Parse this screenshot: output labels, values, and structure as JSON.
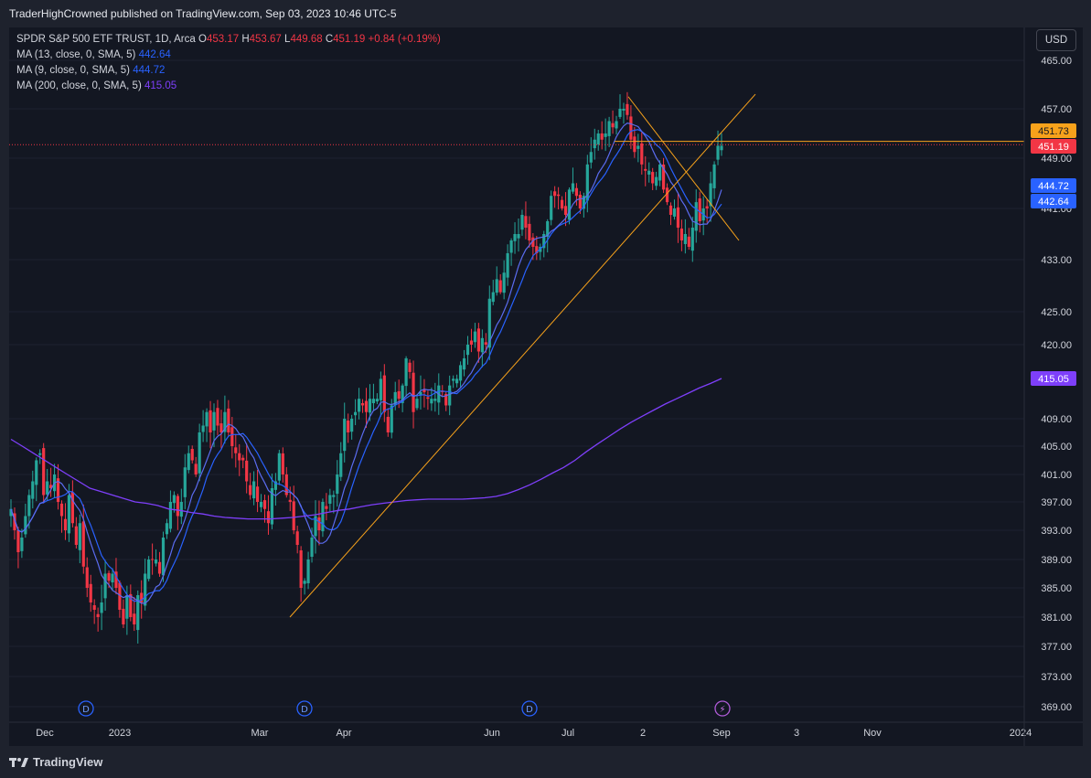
{
  "header": {
    "published": "TraderHighCrowned published on TradingView.com, Sep 03, 2023 10:46 UTC-5"
  },
  "legend": {
    "symbol": "SPDR S&P 500 ETF TRUST, 1D, Arca",
    "o_label": "O",
    "o_value": "453.17",
    "h_label": "H",
    "h_value": "453.67",
    "l_label": "L",
    "l_value": "449.68",
    "c_label": "C",
    "c_value": "451.19",
    "change": "+0.84 (+0.19%)",
    "ma13_label": "MA (13, close, 0, SMA, 5)",
    "ma13_value": "442.64",
    "ma9_label": "MA (9, close, 0, SMA, 5)",
    "ma9_value": "444.72",
    "ma200_label": "MA (200, close, 0, SMA, 5)",
    "ma200_value": "415.05"
  },
  "currency_button": "USD",
  "footer": {
    "brand": "TradingView"
  },
  "colors": {
    "up": "#26a69a",
    "down": "#f23645",
    "ma13": "#2962ff",
    "ma9": "#5b6cf0",
    "ma200": "#7e3ffa",
    "trendline": "#f7a21b",
    "current": "#f23645"
  },
  "chart_data": {
    "type": "candlestick",
    "symbol": "SPY",
    "interval": "1D",
    "y_ticks": [
      "465.00",
      "457.00",
      "449.00",
      "441.00",
      "433.00",
      "425.00",
      "420.00",
      "409.00",
      "405.00",
      "401.00",
      "397.00",
      "393.00",
      "389.00",
      "385.00",
      "381.00",
      "377.00",
      "373.00",
      "369.00"
    ],
    "x_ticks": [
      "Dec",
      "2023",
      "Mar",
      "Apr",
      "Jun",
      "Jul",
      "2",
      "Sep",
      "3",
      "Nov",
      "2024"
    ],
    "price_labels": [
      {
        "text": "451.73",
        "value": 451.73,
        "color": "#f7a21b"
      },
      {
        "text": "451.19",
        "value": 451.19,
        "color": "#f23645"
      },
      {
        "text": "444.72",
        "value": 444.72,
        "color": "#2962ff"
      },
      {
        "text": "442.64",
        "value": 442.64,
        "color": "#2962ff"
      },
      {
        "text": "415.05",
        "value": 415.05,
        "color": "#7e3ffa"
      }
    ],
    "series_close": [
      396,
      393,
      390,
      392,
      395,
      398,
      400,
      403,
      404,
      398,
      400,
      399,
      401,
      397,
      395,
      393,
      398,
      394,
      391,
      394,
      388,
      385,
      383,
      382,
      381,
      383,
      387,
      386,
      387,
      385,
      382,
      380,
      384,
      381,
      380,
      384,
      383,
      387,
      389,
      389,
      389,
      387,
      392,
      394,
      397,
      398,
      395,
      397,
      402,
      404,
      403,
      401,
      407,
      408,
      410,
      407,
      410,
      408,
      407,
      410,
      407,
      405,
      404,
      403,
      403,
      400,
      398,
      400,
      397,
      397,
      396,
      394,
      399,
      400,
      404,
      401,
      398,
      397,
      393,
      391,
      385,
      386,
      389,
      392,
      395,
      393,
      397,
      396,
      398,
      398,
      401,
      404,
      409,
      407,
      409,
      410,
      412,
      411,
      410,
      412,
      412,
      412,
      415,
      410,
      407,
      411,
      413,
      412,
      414,
      418,
      416,
      410,
      412,
      413,
      413,
      412,
      412,
      412,
      414,
      413,
      411,
      414,
      415,
      415,
      417,
      418,
      420,
      420,
      422,
      419,
      421,
      420,
      427,
      428,
      430,
      428,
      431,
      434,
      436,
      437,
      437,
      440,
      438,
      436,
      435,
      434,
      435,
      437,
      439,
      443,
      443,
      443,
      441,
      440,
      444,
      445,
      443,
      441,
      443,
      448,
      450,
      452,
      453,
      452,
      453,
      455,
      454,
      455,
      457,
      457,
      456,
      452,
      450,
      451,
      448,
      447,
      447,
      445,
      446,
      448,
      444,
      442,
      440,
      441,
      438,
      436,
      437,
      435,
      438,
      442,
      439,
      441,
      441,
      445,
      448,
      451,
      451
    ],
    "ma200_last": 415.05,
    "trendlines": [
      {
        "name": "support",
        "from": [
          381,
          "Mar"
        ],
        "to": [
          459,
          "Sep"
        ]
      },
      {
        "name": "resistance",
        "from": [
          459,
          "Jul"
        ],
        "to": [
          436,
          "Sep"
        ]
      },
      {
        "name": "horizontal",
        "value": 451.73
      }
    ],
    "events": [
      {
        "type": "dividend",
        "label": "D"
      },
      {
        "type": "dividend",
        "label": "D"
      },
      {
        "type": "dividend",
        "label": "D"
      },
      {
        "type": "split-flash",
        "label": "⚡"
      }
    ]
  }
}
